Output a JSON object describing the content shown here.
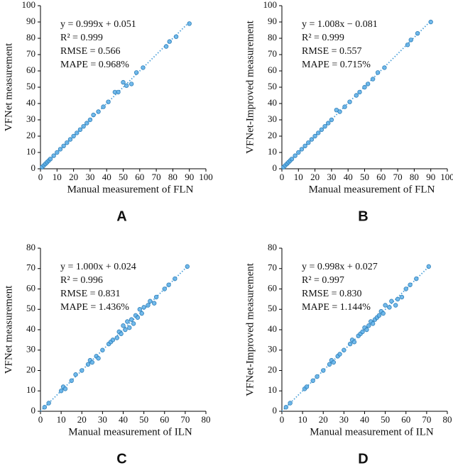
{
  "chart_data": [
    {
      "type": "scatter",
      "panel_label": "A",
      "xlabel": "Manual measurement of FLN",
      "ylabel": "VFNet measurement",
      "annotations": [
        "y = 0.999x + 0.051",
        "R² = 0.999",
        "RMSE = 0.566",
        "MAPE = 0.968%"
      ],
      "trendline": {
        "slope": 0.999,
        "intercept": 0.051
      },
      "color": "#5aaee8",
      "x": [
        1,
        2,
        3,
        4,
        5,
        6,
        8,
        10,
        12,
        14,
        16,
        18,
        20,
        22,
        24,
        26,
        28,
        30,
        32,
        35,
        38,
        41,
        45,
        47,
        50,
        52,
        55,
        58,
        62,
        76,
        78,
        82,
        90
      ],
      "values": [
        1,
        2,
        3,
        4,
        5,
        6,
        8,
        10,
        12,
        14,
        16,
        18,
        20,
        22,
        24,
        26,
        28,
        30,
        33,
        35,
        38,
        41,
        47,
        47,
        53,
        51,
        52,
        59,
        62,
        75,
        78,
        81,
        89
      ],
      "xlim": [
        0,
        100
      ],
      "ylim": [
        0,
        100
      ],
      "xticks": [
        0,
        10,
        20,
        30,
        40,
        50,
        60,
        70,
        80,
        90,
        100
      ],
      "yticks": [
        0,
        10,
        20,
        30,
        40,
        50,
        60,
        70,
        80,
        90,
        100
      ]
    },
    {
      "type": "scatter",
      "panel_label": "B",
      "xlabel": "Manual measurement of FLN",
      "ylabel": "VFNet-Improved measurement",
      "annotations": [
        "y = 1.008x − 0.081",
        "R² = 0.999",
        "RMSE = 0.557",
        "MAPE = 0.715%"
      ],
      "trendline": {
        "slope": 1.008,
        "intercept": -0.081
      },
      "color": "#5aaee8",
      "x": [
        1,
        2,
        3,
        4,
        5,
        6,
        8,
        10,
        12,
        14,
        16,
        18,
        20,
        22,
        24,
        26,
        28,
        30,
        33,
        35,
        38,
        41,
        45,
        47,
        50,
        52,
        55,
        58,
        62,
        76,
        78,
        82,
        90
      ],
      "values": [
        1,
        2,
        3,
        4,
        5,
        6,
        8,
        10,
        12,
        14,
        16,
        18,
        20,
        22,
        24,
        26,
        28,
        30,
        36,
        35,
        38,
        41,
        45,
        47,
        50,
        52,
        55,
        59,
        62,
        76,
        79,
        83,
        90
      ],
      "xlim": [
        0,
        100
      ],
      "ylim": [
        0,
        100
      ],
      "xticks": [
        0,
        10,
        20,
        30,
        40,
        50,
        60,
        70,
        80,
        90,
        100
      ],
      "yticks": [
        0,
        10,
        20,
        30,
        40,
        50,
        60,
        70,
        80,
        90,
        100
      ]
    },
    {
      "type": "scatter",
      "panel_label": "C",
      "xlabel": "Manual measurement of ILN",
      "ylabel": "VFNet measurement",
      "annotations": [
        "y = 1.000x + 0.024",
        "R² = 0.996",
        "RMSE = 0.831",
        "MAPE = 1.436%"
      ],
      "trendline": {
        "slope": 1.0,
        "intercept": 0.024
      },
      "color": "#5aaee8",
      "x": [
        2,
        4,
        10,
        11,
        12,
        15,
        17,
        20,
        23,
        24,
        25,
        27,
        28,
        30,
        33,
        34,
        35,
        37,
        38,
        39,
        40,
        41,
        42,
        43,
        44,
        45,
        46,
        47,
        48,
        49,
        50,
        52,
        53,
        55,
        56,
        60,
        62,
        65,
        71
      ],
      "values": [
        2,
        4,
        10,
        12,
        11,
        15,
        18,
        20,
        23,
        25,
        24,
        27,
        26,
        30,
        33,
        34,
        35,
        36,
        39,
        38,
        42,
        40,
        44,
        41,
        45,
        43,
        47,
        46,
        50,
        48,
        51,
        52,
        54,
        53,
        56,
        60,
        62,
        65,
        71
      ],
      "xlim": [
        0,
        80
      ],
      "ylim": [
        0,
        80
      ],
      "xticks": [
        0,
        10,
        20,
        30,
        40,
        50,
        60,
        70,
        80
      ],
      "yticks": [
        0,
        10,
        20,
        30,
        40,
        50,
        60,
        70,
        80
      ]
    },
    {
      "type": "scatter",
      "panel_label": "D",
      "xlabel": "Manual measurement of ILN",
      "ylabel": "VFNet-Improved measurement",
      "annotations": [
        "y = 0.998x + 0.027",
        "R² = 0.997",
        "RMSE = 0.830",
        "MAPE = 1.144%"
      ],
      "trendline": {
        "slope": 0.998,
        "intercept": 0.027
      },
      "color": "#5aaee8",
      "x": [
        2,
        4,
        11,
        12,
        15,
        17,
        20,
        23,
        24,
        25,
        27,
        28,
        30,
        33,
        34,
        35,
        37,
        38,
        39,
        40,
        41,
        42,
        43,
        44,
        45,
        46,
        47,
        48,
        49,
        50,
        52,
        53,
        55,
        56,
        58,
        60,
        62,
        65,
        71
      ],
      "values": [
        2,
        4,
        11,
        12,
        15,
        17,
        20,
        23,
        25,
        24,
        27,
        28,
        30,
        33,
        35,
        34,
        37,
        38,
        39,
        41,
        40,
        42,
        44,
        43,
        45,
        46,
        47,
        49,
        48,
        52,
        51,
        54,
        52,
        55,
        56,
        60,
        62,
        65,
        71
      ],
      "xlim": [
        0,
        80
      ],
      "ylim": [
        0,
        80
      ],
      "xticks": [
        0,
        10,
        20,
        30,
        40,
        50,
        60,
        70,
        80
      ],
      "yticks": [
        0,
        10,
        20,
        30,
        40,
        50,
        60,
        70,
        80
      ]
    }
  ]
}
